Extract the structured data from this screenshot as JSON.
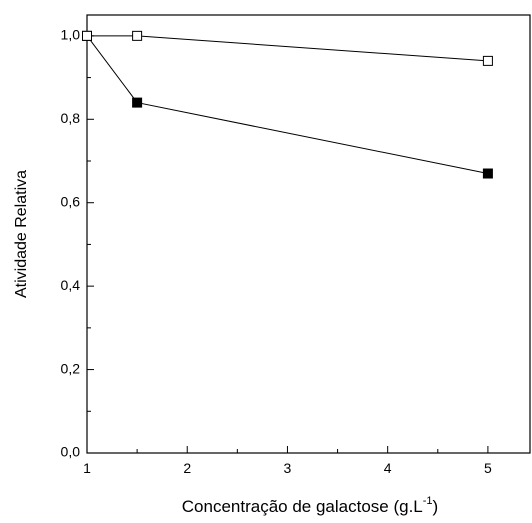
{
  "chart_data": {
    "type": "line",
    "ylabel": "Atividade Relativa",
    "xlabel": {
      "text": "Concentração de galactose (g.L",
      "sup": "-1",
      "end": ")"
    },
    "series": [
      {
        "color": "#000000",
        "marker": "square-filled",
        "x": [
          1,
          1.5,
          5
        ],
        "values": [
          1.0,
          0.84,
          0.67
        ]
      },
      {
        "color": "#000000",
        "marker": "square-open",
        "x": [
          1,
          1.5,
          5
        ],
        "values": [
          1.0,
          1.0,
          0.94
        ]
      }
    ],
    "xlim": [
      1,
      5.42
    ],
    "ylim": [
      0,
      1.05
    ],
    "xticks": [
      1,
      2,
      3,
      4,
      5
    ],
    "xminorticks": [
      1.5,
      2.5,
      3.5,
      4.5
    ],
    "yticks": [
      {
        "value": 0,
        "label": "0,0"
      },
      {
        "value": 0.2,
        "label": "0,2"
      },
      {
        "value": 0.4,
        "label": "0,4"
      },
      {
        "value": 0.6,
        "label": "0,6"
      },
      {
        "value": 0.8,
        "label": "0,8"
      },
      {
        "value": 1.0,
        "label": "1,0"
      }
    ],
    "yminorticks": [
      0.1,
      0.3,
      0.5,
      0.7,
      0.9
    ],
    "grid": false
  }
}
